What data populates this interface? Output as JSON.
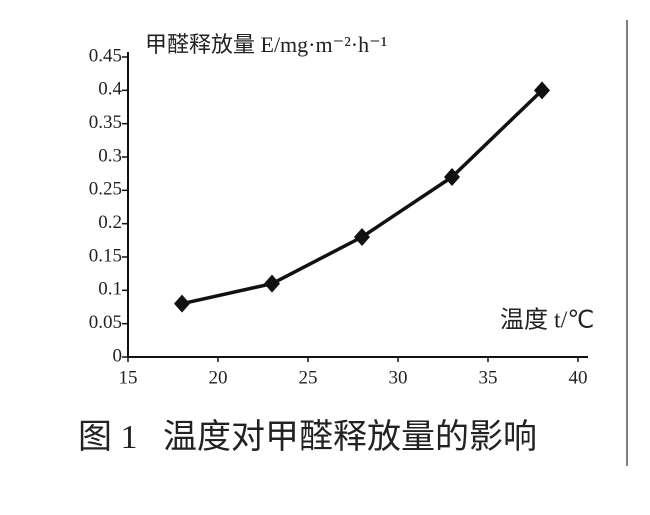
{
  "chart_data": {
    "type": "line",
    "ylabel": "甲醛释放量 E/mg·m⁻²·h⁻¹",
    "xlabel": "温度 t/℃",
    "caption": "图 1   温度对甲醛释放量的影响",
    "x": [
      18,
      23,
      28,
      33,
      38
    ],
    "series": [
      {
        "color": "#111111",
        "values": [
          0.08,
          0.11,
          0.18,
          0.27,
          0.4
        ]
      }
    ],
    "xlim": [
      15,
      40
    ],
    "xticks": [
      15,
      20,
      25,
      30,
      35,
      40
    ],
    "ylim": [
      0,
      0.45
    ],
    "yticks": [
      0,
      0.05,
      0.1,
      0.15,
      0.2,
      0.25,
      0.3,
      0.35,
      0.4,
      0.45
    ]
  }
}
